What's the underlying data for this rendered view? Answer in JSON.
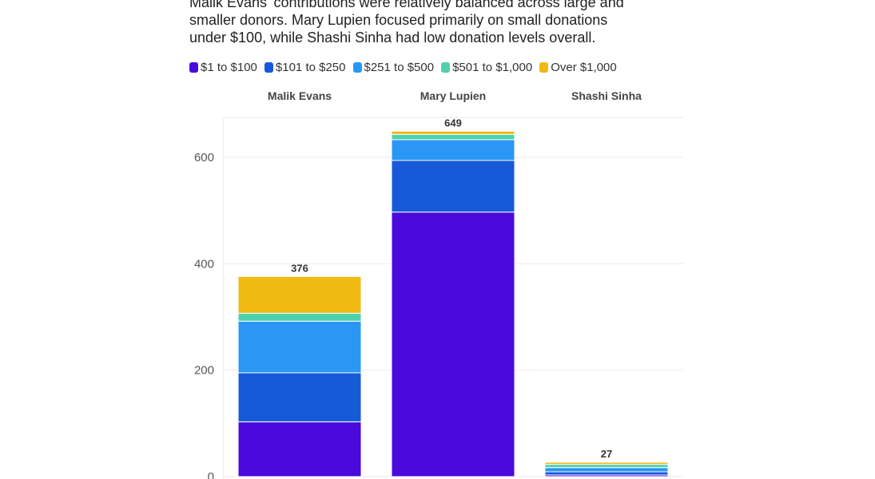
{
  "description_lines": [
    "Malik Evans' contributions were relatively balanced across large and",
    "smaller donors. Mary Lupien focused primarily on small donations",
    "under $100, while Shashi Sinha had low donation levels overall."
  ],
  "chart_data": {
    "type": "bar",
    "stacked": true,
    "categories": [
      "Malik Evans",
      "Mary Lupien",
      "Shashi Sinha"
    ],
    "series": [
      {
        "name": "$1 to $100",
        "color": "#4a0adb",
        "values": [
          103,
          497,
          3
        ]
      },
      {
        "name": "$101 to $250",
        "color": "#165ad9",
        "values": [
          92,
          97,
          6
        ]
      },
      {
        "name": "$251 to $500",
        "color": "#2b97f5",
        "values": [
          97,
          39,
          8
        ]
      },
      {
        "name": "$501 to $1,000",
        "color": "#4fd1ad",
        "values": [
          15,
          10,
          6
        ]
      },
      {
        "name": "Over $1,000",
        "color": "#f0b914",
        "values": [
          69,
          6,
          4
        ]
      }
    ],
    "totals": [
      "376",
      "649",
      "27"
    ],
    "ylim": [
      0,
      685
    ],
    "yticks": [
      0,
      200,
      400,
      600
    ],
    "ytick_labels": [
      "0",
      "200",
      "400",
      "600"
    ],
    "grid": true,
    "legend_position": "top-left",
    "xlabel": "",
    "ylabel": ""
  }
}
